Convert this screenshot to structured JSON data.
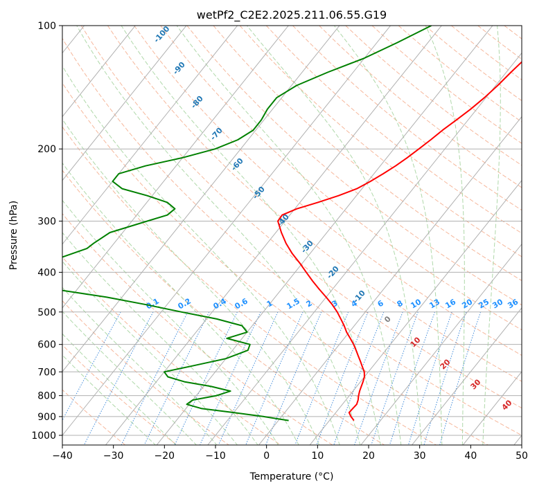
{
  "chart_data": {
    "type": "line",
    "chart_kind": "skew-t log-p diagram",
    "title": "wetPf2_C2E2.2025.211.06.55.G19",
    "xlabel": "Temperature (°C)",
    "ylabel": "Pressure (hPa)",
    "xlim": [
      -40,
      50
    ],
    "ylim": [
      1050,
      100
    ],
    "y_scale": "log",
    "x_ticks": [
      "−40",
      "−30",
      "−20",
      "−10",
      "0",
      "10",
      "20",
      "30",
      "40",
      "50"
    ],
    "y_ticks": [
      "100",
      "200",
      "300",
      "400",
      "500",
      "600",
      "700",
      "800",
      "900",
      "1000"
    ],
    "grid": true,
    "series": [
      {
        "role": "temperature",
        "color": "#ff0000",
        "points": [
          [
            100,
            -6.5
          ],
          [
            110,
            -7.5
          ],
          [
            120,
            -8.4
          ],
          [
            130,
            -9.1
          ],
          [
            140,
            -9.6
          ],
          [
            150,
            -10.3
          ],
          [
            160,
            -11.2
          ],
          [
            170,
            -12.3
          ],
          [
            180,
            -13.4
          ],
          [
            190,
            -14.2
          ],
          [
            200,
            -15.1
          ],
          [
            210,
            -16.0
          ],
          [
            220,
            -17.0
          ],
          [
            230,
            -18.2
          ],
          [
            240,
            -19.5
          ],
          [
            250,
            -21.0
          ],
          [
            260,
            -23.5
          ],
          [
            270,
            -26.5
          ],
          [
            280,
            -29.6
          ],
          [
            290,
            -31.5
          ],
          [
            300,
            -31.4
          ],
          [
            320,
            -28.9
          ],
          [
            340,
            -26.3
          ],
          [
            360,
            -23.5
          ],
          [
            380,
            -20.5
          ],
          [
            400,
            -17.8
          ],
          [
            420,
            -15.2
          ],
          [
            440,
            -12.6
          ],
          [
            460,
            -10.0
          ],
          [
            480,
            -7.6
          ],
          [
            500,
            -5.5
          ],
          [
            520,
            -3.7
          ],
          [
            540,
            -2.0
          ],
          [
            560,
            -0.5
          ],
          [
            580,
            1.2
          ],
          [
            600,
            2.8
          ],
          [
            620,
            4.2
          ],
          [
            640,
            5.5
          ],
          [
            660,
            6.8
          ],
          [
            680,
            8.0
          ],
          [
            700,
            9.2
          ],
          [
            720,
            10.0
          ],
          [
            740,
            10.5
          ],
          [
            760,
            10.9
          ],
          [
            780,
            11.3
          ],
          [
            800,
            11.8
          ],
          [
            820,
            12.4
          ],
          [
            840,
            12.8
          ],
          [
            860,
            12.7
          ],
          [
            880,
            12.6
          ],
          [
            900,
            13.6
          ],
          [
            920,
            14.8
          ]
        ]
      },
      {
        "role": "dewpoint",
        "color": "#008000",
        "points": [
          [
            100,
            -32.0
          ],
          [
            110,
            -36.0
          ],
          [
            120,
            -40.0
          ],
          [
            130,
            -45.0
          ],
          [
            140,
            -49.0
          ],
          [
            150,
            -51.0
          ],
          [
            160,
            -51.0
          ],
          [
            170,
            -50.5
          ],
          [
            180,
            -50.5
          ],
          [
            190,
            -52.0
          ],
          [
            200,
            -55.0
          ],
          [
            210,
            -60.0
          ],
          [
            220,
            -66.0
          ],
          [
            230,
            -70.0
          ],
          [
            240,
            -70.0
          ],
          [
            250,
            -67.0
          ],
          [
            260,
            -61.0
          ],
          [
            270,
            -56.0
          ],
          [
            280,
            -53.5
          ],
          [
            290,
            -54.0
          ],
          [
            300,
            -57.0
          ],
          [
            320,
            -62.5
          ],
          [
            340,
            -64.0
          ],
          [
            350,
            -64.5
          ],
          [
            370,
            -68.5
          ],
          [
            390,
            -74.0
          ],
          [
            400,
            -80.0
          ],
          [
            410,
            -85.0
          ],
          [
            420,
            -78.0
          ],
          [
            440,
            -64.5
          ],
          [
            460,
            -53.0
          ],
          [
            480,
            -44.0
          ],
          [
            500,
            -36.0
          ],
          [
            520,
            -28.0
          ],
          [
            540,
            -22.0
          ],
          [
            560,
            -20.0
          ],
          [
            580,
            -23.0
          ],
          [
            600,
            -17.5
          ],
          [
            620,
            -17.0
          ],
          [
            650,
            -20.0
          ],
          [
            680,
            -26.0
          ],
          [
            700,
            -30.0
          ],
          [
            720,
            -28.5
          ],
          [
            740,
            -24.5
          ],
          [
            760,
            -18.5
          ],
          [
            780,
            -14.0
          ],
          [
            800,
            -16.0
          ],
          [
            820,
            -20.0
          ],
          [
            840,
            -20.5
          ],
          [
            860,
            -17.0
          ],
          [
            880,
            -10.0
          ],
          [
            900,
            -3.5
          ],
          [
            920,
            2.0
          ]
        ]
      }
    ],
    "dry_adiabat_labels": [
      "0",
      "10",
      "20",
      "30",
      "40"
    ],
    "moist_adiabat_labels": [
      "-100",
      "-90",
      "-80",
      "-70",
      "-60",
      "-50",
      "-40",
      "-30",
      "-20",
      "-10"
    ],
    "mixing_ratio_labels": [
      "0.1",
      "0.2",
      "0.4",
      "0.6",
      "1",
      "1.5",
      "2",
      "3",
      "4",
      "6",
      "8",
      "10",
      "13",
      "16",
      "20",
      "25",
      "30",
      "36"
    ],
    "colors": {
      "temperature": "#ff0000",
      "dewpoint": "#008000",
      "isotherm_isobar_grid": "#b0b0b0",
      "dry_adiabat": "#f4a582",
      "moist_adiabat": "#a6d4a0",
      "mixing_ratio": "#1f77d4",
      "dry_label": "#d62728",
      "moist_label": "#1f77b4",
      "mixing_label": "#1e90ff",
      "isotherm_label": "#808080"
    }
  }
}
